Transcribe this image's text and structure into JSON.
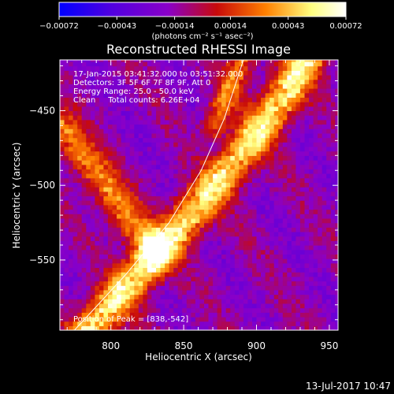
{
  "chart_data": {
    "type": "heatmap",
    "title": "Reconstructed RHESSI Image",
    "xlabel": "Heliocentric X (arcsec)",
    "ylabel": "Heliocentric Y (arcsec)",
    "xlim": [
      765,
      956
    ],
    "ylim": [
      -597,
      -416
    ],
    "x_ticks": [
      800,
      850,
      900,
      950
    ],
    "y_ticks": [
      -450,
      -500,
      -550
    ],
    "x_tick_labels": [
      "800",
      "850",
      "900",
      "950"
    ],
    "y_tick_labels": [
      "−450",
      "−500",
      "−550"
    ],
    "colorbar": {
      "range": [
        -0.00072,
        0.00072
      ],
      "ticks": [
        -0.00072,
        -0.00043,
        -0.00014,
        0.00014,
        0.00043,
        0.00072
      ],
      "tick_labels": [
        "−0.00072",
        "−0.00043",
        "−0.00014",
        "0.00014",
        "0.00043",
        "0.00072"
      ],
      "unit_label": "(photons cm⁻² s⁻¹ asec⁻²)",
      "colors": [
        "#0000ff",
        "#8a00c8",
        "#c80a0a",
        "#ff8000",
        "#ffff80",
        "#ffffff"
      ]
    },
    "annotations": [
      "17-Jan-2015 03:41:32.000 to 03:51:32.000",
      "Detectors: 3F 5F 6F 7F 8F 9F, Att 0",
      "Energy Range: 25.0 - 50.0 keV",
      "Clean     Total counts: 6.26E+04"
    ],
    "peak_label": "Position of Peak = [838,-542]",
    "peak": [
      838,
      -542
    ],
    "ridges": [
      {
        "name": "main",
        "amp": 0.00072,
        "width": 9,
        "points": [
          [
            784,
            -597
          ],
          [
            818,
            -560
          ],
          [
            850,
            -525
          ],
          [
            882,
            -488
          ],
          [
            912,
            -450
          ],
          [
            935,
            -416
          ]
        ]
      },
      {
        "name": "upper-left",
        "amp": 0.0005,
        "width": 8,
        "points": [
          [
            765,
            -460
          ],
          [
            790,
            -492
          ],
          [
            812,
            -522
          ],
          [
            830,
            -546
          ]
        ]
      },
      {
        "name": "top-right",
        "amp": 0.00045,
        "width": 6,
        "points": [
          [
            890,
            -416
          ],
          [
            880,
            -440
          ],
          [
            870,
            -460
          ]
        ]
      }
    ],
    "background_level": -0.00016,
    "limb_curve": [
      [
        775,
        -597
      ],
      [
        810,
        -560
      ],
      [
        840,
        -525
      ],
      [
        862,
        -490
      ],
      [
        878,
        -455
      ],
      [
        891,
        -416
      ]
    ],
    "footer_date": "13-Jul-2017 10:47"
  }
}
